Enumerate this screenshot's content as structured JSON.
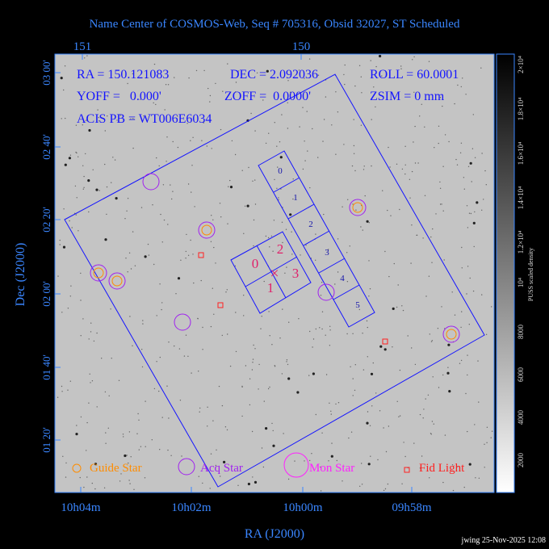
{
  "title": "Name Center of COSMOS-Web, Seq # 705316, Obsid 32027, ST Scheduled",
  "top_axis": {
    "ticks": [
      "151",
      "150"
    ]
  },
  "left_axis": {
    "label": "Dec (J2000)",
    "ticks": [
      "03 00'",
      "02 40'",
      "02 20'",
      "02 00'",
      "01 40'",
      "01 20'"
    ]
  },
  "bottom_axis": {
    "label": "RA (J2000)",
    "ticks": [
      "10h04m",
      "10h02m",
      "10h00m",
      "09h58m"
    ]
  },
  "info": [
    [
      "RA = 150.121083",
      "DEC = 2.092036",
      "ROLL = 60.0001"
    ],
    [
      "YOFF =   0.000'",
      "ZOFF =  0.0000'",
      "ZSIM = 0 mm"
    ],
    [
      "ACIS PB = WT006E6034"
    ]
  ],
  "chips": {
    "acis_i": [
      "0",
      "2",
      "1",
      "3"
    ],
    "acis_s": [
      "0",
      "1",
      "2",
      "3",
      "4",
      "5"
    ]
  },
  "legend": [
    "Guide Star",
    "Acq Star",
    "Mon Star",
    "Fid Light"
  ],
  "colorbar": {
    "title": "PUSS scaled density",
    "ticks": [
      "2000",
      "4000",
      "6000",
      "8000",
      "10⁴",
      "1.2×10⁴",
      "1.4×10⁴",
      "1.6×10⁴",
      "1.8×10⁴",
      "2×10⁴"
    ]
  },
  "footer": "jwing 25-Nov-2025 12:08"
}
